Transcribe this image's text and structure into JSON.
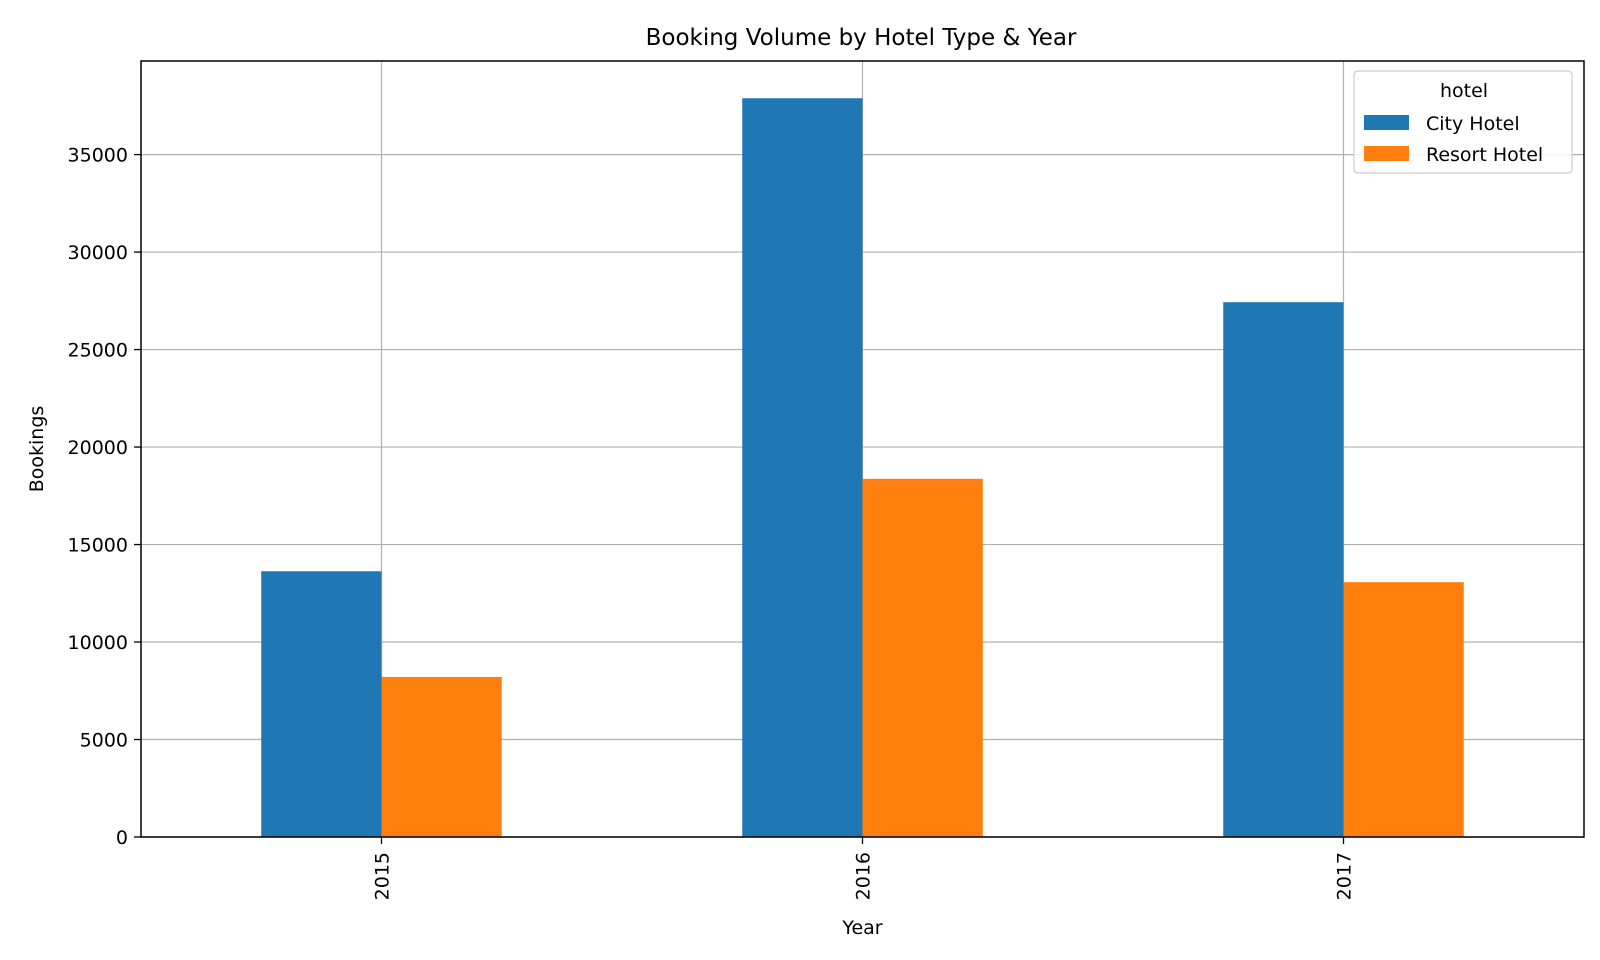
{
  "chart_data": {
    "type": "bar",
    "title": "Booking Volume by Hotel Type & Year",
    "xlabel": "Year",
    "ylabel": "Bookings",
    "categories": [
      "2015",
      "2016",
      "2017"
    ],
    "series": [
      {
        "name": "City Hotel",
        "color": "#1f77b4",
        "values": [
          13630,
          37890,
          27430
        ]
      },
      {
        "name": "Resort Hotel",
        "color": "#ff7f0e",
        "values": [
          8210,
          18370,
          13070
        ]
      }
    ],
    "ylim": [
      0,
      39800
    ],
    "yticks": [
      0,
      5000,
      10000,
      15000,
      20000,
      25000,
      30000,
      35000
    ],
    "grid": true,
    "legend": {
      "title": "hotel",
      "placement": "top-right"
    }
  }
}
